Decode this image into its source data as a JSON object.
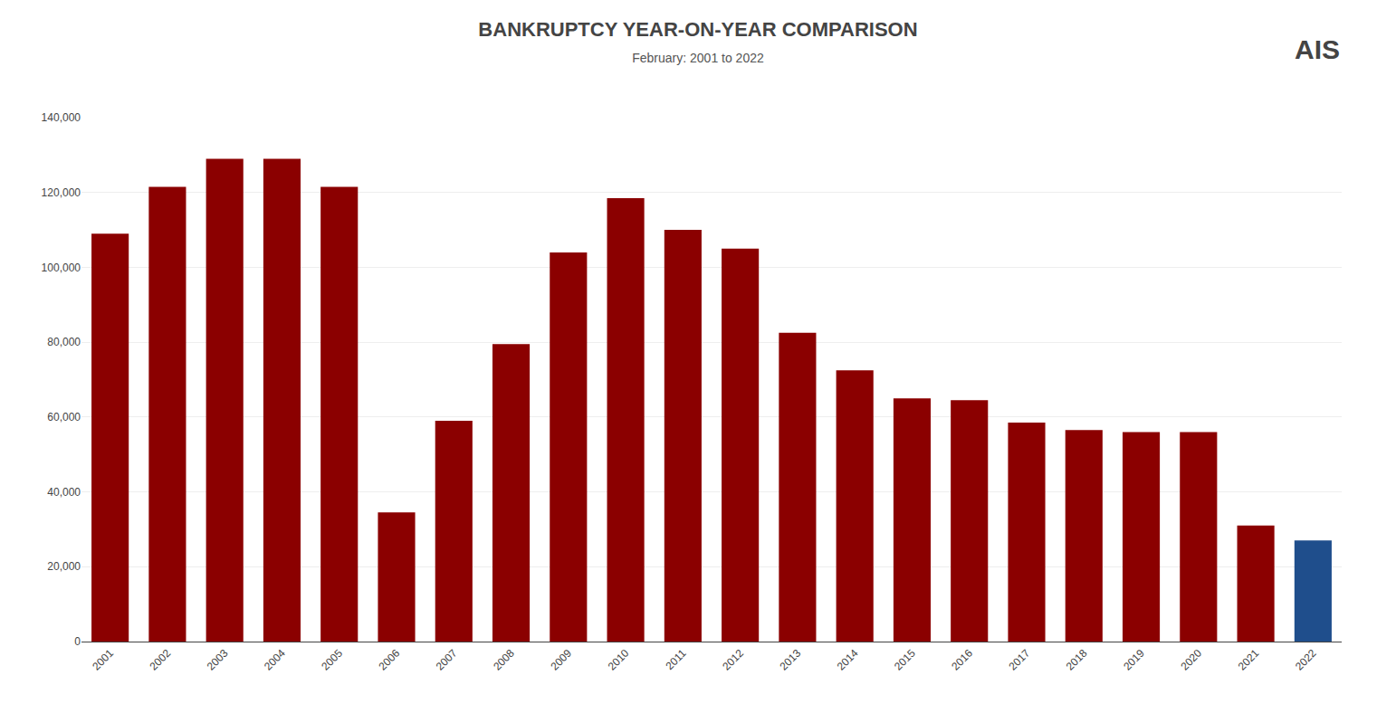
{
  "chart_data": {
    "type": "bar",
    "title": "BANKRUPTCY YEAR-ON-YEAR COMPARISON",
    "subtitle": "February: 2001 to 2022",
    "categories": [
      "2001",
      "2002",
      "2003",
      "2004",
      "2005",
      "2006",
      "2007",
      "2008",
      "2009",
      "2010",
      "2011",
      "2012",
      "2013",
      "2014",
      "2015",
      "2016",
      "2017",
      "2018",
      "2019",
      "2020",
      "2021",
      "2022"
    ],
    "values": [
      109000,
      121500,
      129000,
      129000,
      121500,
      34500,
      59000,
      79500,
      104000,
      118500,
      110000,
      105000,
      82500,
      72500,
      65000,
      64500,
      58500,
      56500,
      56000,
      56000,
      31000,
      27000
    ],
    "colors": [
      "#8B0000",
      "#8B0000",
      "#8B0000",
      "#8B0000",
      "#8B0000",
      "#8B0000",
      "#8B0000",
      "#8B0000",
      "#8B0000",
      "#8B0000",
      "#8B0000",
      "#8B0000",
      "#8B0000",
      "#8B0000",
      "#8B0000",
      "#8B0000",
      "#8B0000",
      "#8B0000",
      "#8B0000",
      "#8B0000",
      "#8B0000",
      "#1F4E8C"
    ],
    "ylim": [
      0,
      140000
    ],
    "yticks": [
      0,
      {
        "value": 20000,
        "label": "20,000"
      },
      {
        "value": 40000,
        "label": "40,000"
      },
      {
        "value": 60000,
        "label": "60,000"
      },
      {
        "value": 80000,
        "label": "80,000"
      },
      {
        "value": 100000,
        "label": "100,000"
      },
      {
        "value": 120000,
        "label": "120,000"
      },
      {
        "value": 140000,
        "label": "140,000"
      }
    ],
    "grid": true,
    "annotations": [
      "AIS"
    ]
  }
}
